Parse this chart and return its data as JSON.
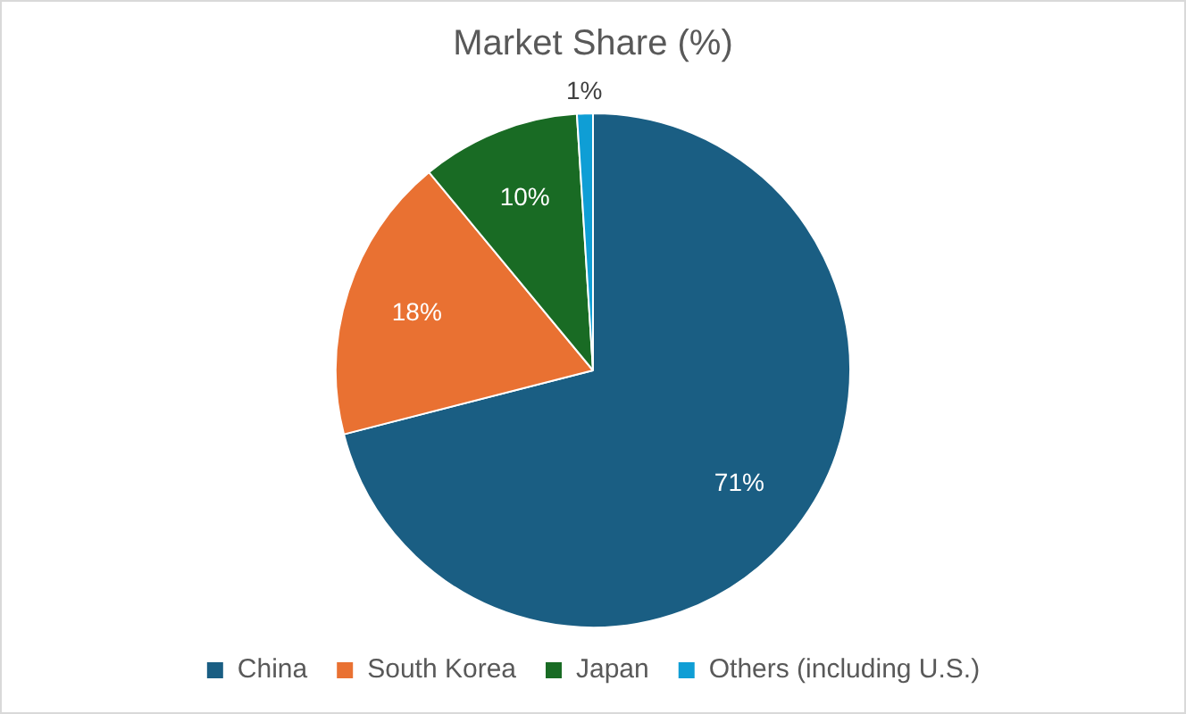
{
  "chart_data": {
    "type": "pie",
    "title": "Market Share (%)",
    "categories": [
      "China",
      "South Korea",
      "Japan",
      "Others (including U.S.)"
    ],
    "values": [
      71,
      18,
      10,
      1
    ],
    "colors": [
      "#1a5e83",
      "#e97132",
      "#196b24",
      "#0f9ed5"
    ],
    "value_labels": [
      "71%",
      "18%",
      "10%",
      "1%"
    ],
    "legend": "bottom"
  }
}
